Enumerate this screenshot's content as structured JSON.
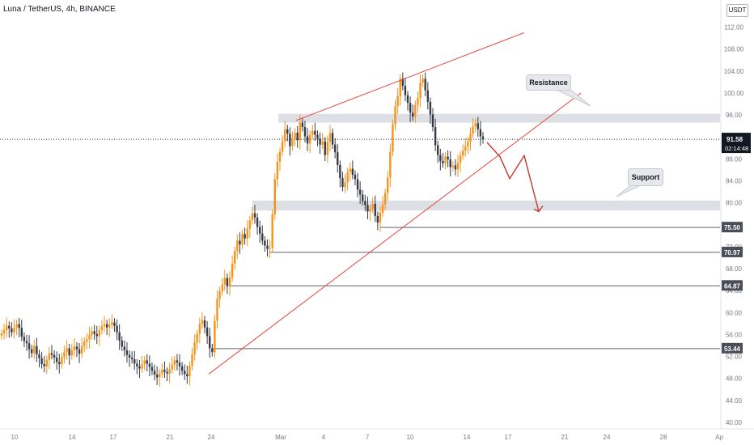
{
  "header": {
    "title": "Luna / TetherUS, 4h, BINANCE",
    "currency": "USDT"
  },
  "chart_data": {
    "type": "candlestick",
    "ylim": [
      40,
      114
    ],
    "y_ticks": [
      "40.00",
      "44.00",
      "48.00",
      "52.00",
      "56.00",
      "60.00",
      "64.00",
      "68.00",
      "72.00",
      "76.00",
      "80.00",
      "84.00",
      "88.00",
      "92.00",
      "96.00",
      "100.00",
      "104.00",
      "108.00",
      "112.00"
    ],
    "x_ticks": [
      "10",
      "14",
      "17",
      "21",
      "24",
      "Mar",
      "4",
      "7",
      "10",
      "14",
      "17",
      "21",
      "24",
      "28",
      "Ap"
    ],
    "last_price": "91.58",
    "countdown": "02:14:48",
    "closes": [
      56.2,
      56.8,
      57.6,
      57.1,
      56.4,
      57.3,
      57.9,
      57.2,
      55.6,
      54.8,
      54.4,
      53.3,
      52.6,
      53.9,
      52.4,
      51.7,
      50.6,
      50.2,
      51.4,
      52.6,
      52.3,
      51.8,
      51.0,
      50.6,
      51.9,
      52.8,
      53.5,
      52.2,
      53.1,
      53.8,
      53.3,
      52.5,
      53.9,
      54.7,
      55.1,
      55.9,
      56.6,
      56.1,
      55.7,
      56.8,
      57.5,
      57.9,
      57.3,
      57.8,
      58.2,
      57.6,
      56.4,
      54.9,
      53.8,
      53.1,
      52.3,
      51.8,
      51.5,
      50.7,
      50.2,
      49.8,
      50.6,
      51.3,
      50.7,
      50.1,
      49.4,
      48.7,
      48.2,
      48.9,
      49.6,
      49.2,
      48.9,
      49.7,
      50.5,
      51.3,
      50.9,
      50.2,
      49.4,
      48.8,
      48.4,
      50.3,
      52.4,
      54.6,
      56.1,
      57.9,
      58.6,
      57.3,
      55.7,
      53.5,
      52.8,
      58.5,
      62.5,
      63.9,
      65.1,
      66.3,
      64.8,
      66.4,
      68.9,
      71.2,
      73.1,
      72.4,
      74.3,
      73.5,
      75.3,
      76.8,
      78.1,
      77.3,
      75.6,
      74.4,
      73.1,
      72.2,
      71.6,
      71.8,
      77.9,
      84.3,
      87.5,
      89.3,
      91.2,
      93.4,
      92.6,
      90.3,
      91.5,
      92.8,
      91.4,
      94.6,
      93.8,
      92.1,
      90.8,
      92.4,
      93.1,
      92.4,
      91.7,
      90.6,
      91.2,
      88.7,
      91.1,
      92.7,
      90.6,
      89.2,
      86.9,
      84.5,
      82.9,
      83.7,
      85.6,
      86.2,
      85.1,
      84.3,
      82.4,
      81.5,
      80.3,
      79.6,
      78.4,
      78.9,
      79.8,
      77.6,
      76.4,
      78.2,
      79.7,
      81.8,
      84.6,
      89.3,
      94.3,
      97.6,
      99.4,
      102.6,
      101.3,
      99.6,
      98.2,
      96.4,
      95.7,
      97.8,
      99.1,
      101.9,
      102.6,
      100.5,
      98.4,
      96.1,
      93.8,
      90.5,
      88.7,
      87.6,
      87.2,
      88.4,
      87.9,
      86.5,
      86.8,
      86.1,
      87.3,
      88.6,
      89.5,
      90.3,
      91.2,
      92.6,
      93.9,
      94.5,
      93.4,
      92.1,
      91.58
    ],
    "resistance_zone": [
      94.6,
      96.2
    ],
    "support_zone": [
      78.6,
      80.4
    ],
    "levels": [
      "75.50",
      "70.97",
      "64.87",
      "53.44"
    ],
    "ascending_trendline": [
      [
        48.8,
        96.4
      ],
      [
        62,
        100
      ]
    ],
    "upper_trendline": [
      [
        97.2,
        111
      ],
      [
        95,
        104.2
      ]
    ],
    "projected_path": [
      91.0,
      88.4,
      84.4,
      88.6,
      78.4
    ],
    "annotations": [
      "Resistance",
      "Support"
    ]
  }
}
